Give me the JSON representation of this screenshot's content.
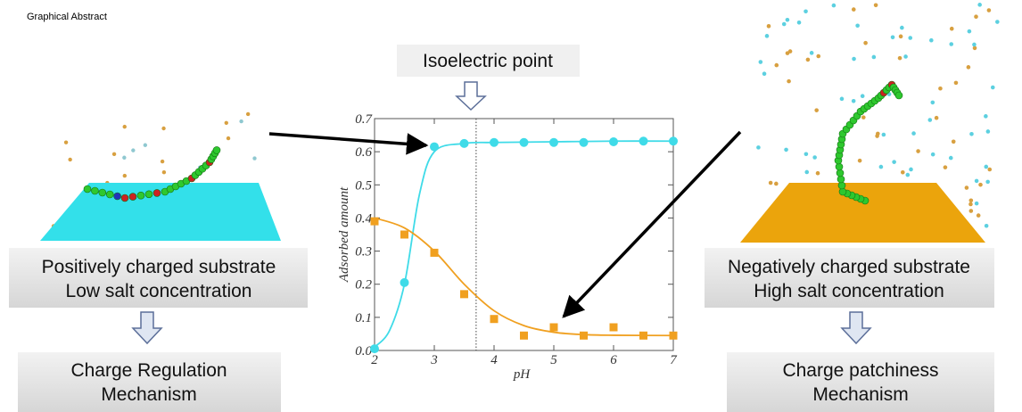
{
  "label": "Graphical Abstract",
  "callout": "Isoelectric point",
  "left": {
    "substrate": [
      "Positively charged substrate",
      "Low salt concentration"
    ],
    "mechanism": [
      "Charge Regulation",
      "Mechanism"
    ]
  },
  "right": {
    "substrate": [
      "Negatively charged substrate",
      "High salt concentration"
    ],
    "mechanism": [
      "Charge patchiness",
      "Mechanism"
    ]
  },
  "chart_data": {
    "type": "scatter",
    "xlabel": "pH",
    "ylabel": "Adsorbed amount",
    "xlim": [
      2,
      7
    ],
    "ylim": [
      0,
      0.7
    ],
    "xticks": [
      2,
      3,
      4,
      5,
      6,
      7
    ],
    "yticks": [
      {
        "value": 0,
        "label": "0.0"
      },
      0.1,
      0.2,
      0.3,
      0.4,
      0.5,
      0.6,
      0.7
    ],
    "vline": 3.7,
    "series": [
      {
        "style": "markers",
        "marker": "circle",
        "color": "#3fdbe8",
        "x": [
          2,
          2.5,
          3,
          3.5,
          4,
          4.5,
          5,
          5.5,
          6,
          6.5,
          7
        ],
        "values": [
          0.005,
          0.205,
          0.615,
          0.625,
          0.628,
          0.628,
          0.628,
          0.628,
          0.63,
          0.632,
          0.632
        ]
      },
      {
        "style": "markers",
        "marker": "square",
        "color": "#f0a020",
        "x": [
          2,
          2.5,
          3,
          3.5,
          4,
          4.5,
          5,
          5.5,
          6,
          6.5,
          7
        ],
        "values": [
          0.39,
          0.35,
          0.295,
          0.17,
          0.095,
          0.045,
          0.07,
          0.045,
          0.07,
          0.045,
          0.045
        ]
      },
      {
        "style": "line",
        "color": "#3fdbe8",
        "x": [
          2,
          2.25,
          2.5,
          2.75,
          3,
          3.5,
          4,
          5,
          6,
          7
        ],
        "values": [
          0.01,
          0.06,
          0.2,
          0.47,
          0.6,
          0.625,
          0.628,
          0.63,
          0.632,
          0.632
        ]
      },
      {
        "style": "line",
        "color": "#f0a020",
        "x": [
          2,
          2.5,
          3,
          3.5,
          4,
          4.5,
          5,
          5.5,
          6,
          7
        ],
        "values": [
          0.4,
          0.37,
          0.3,
          0.2,
          0.12,
          0.075,
          0.055,
          0.048,
          0.046,
          0.045
        ]
      }
    ]
  }
}
